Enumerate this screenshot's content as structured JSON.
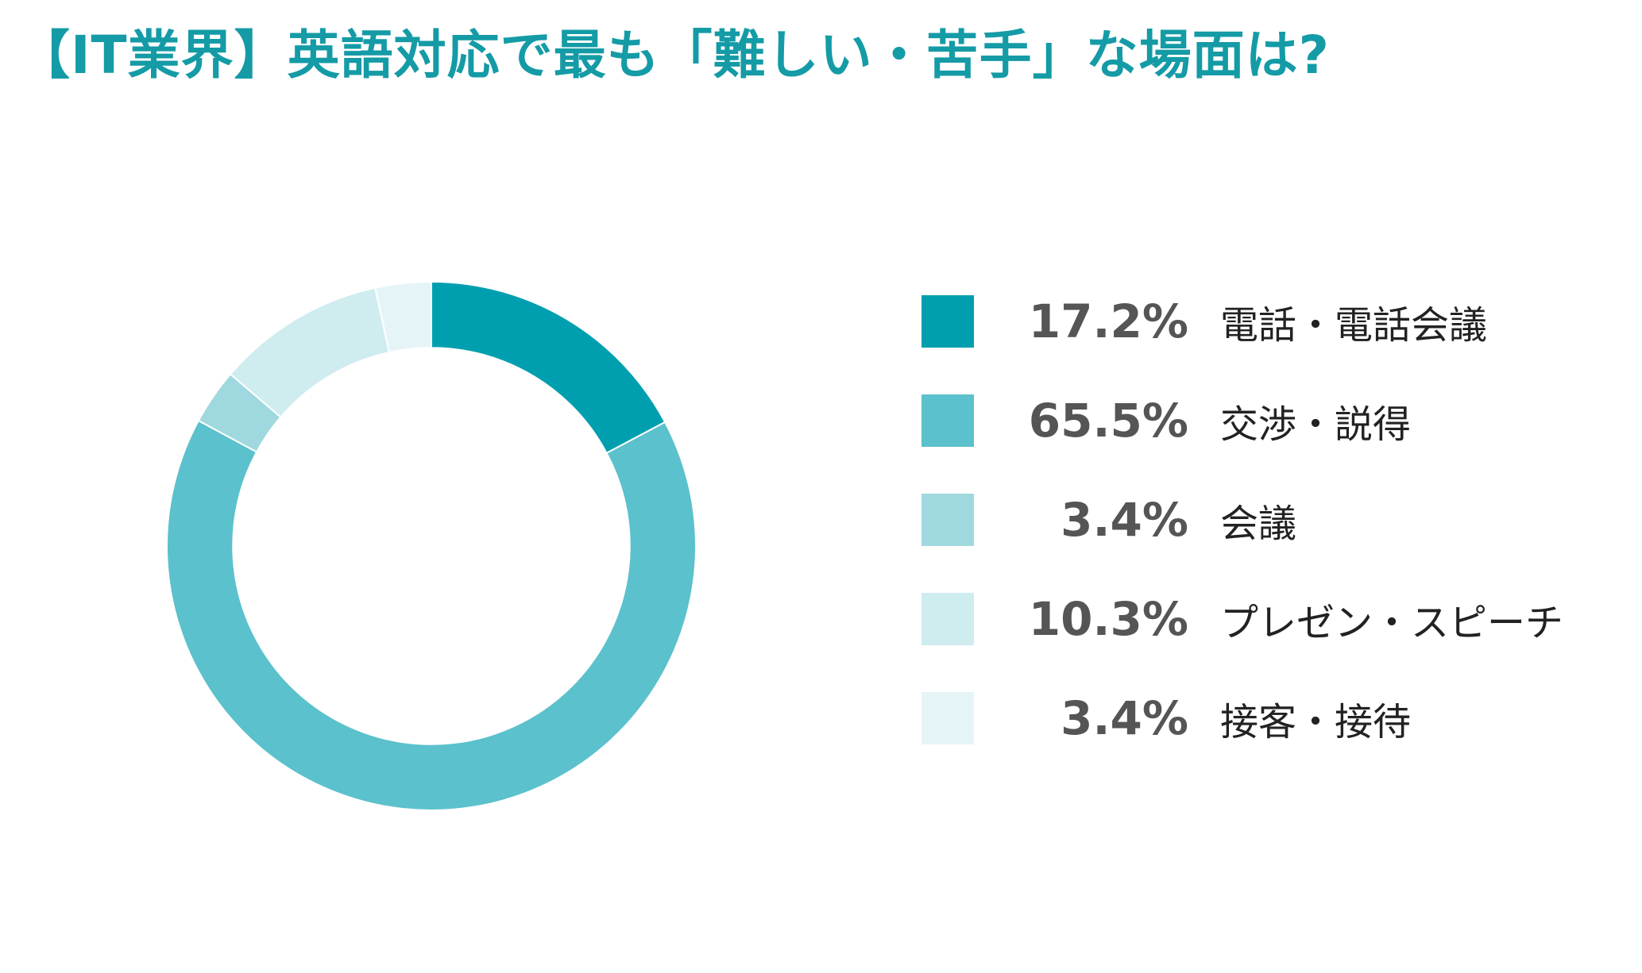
{
  "chart_data": {
    "type": "pie",
    "title": "【IT業界】英語対応で最も「難しい・苦手」な場面は?",
    "title_color": "#149ba6",
    "inner_radius_ratio": 0.75,
    "start_angle_deg": 0,
    "direction": "clockwise",
    "legend_position": "right",
    "slices": [
      {
        "label": "電話・電話会議",
        "value": 17.2,
        "value_label": "17.2%",
        "color": "#009faf"
      },
      {
        "label": "交渉・説得",
        "value": 65.5,
        "value_label": "65.5%",
        "color": "#5bc1cc"
      },
      {
        "label": "会議",
        "value": 3.4,
        "value_label": "3.4%",
        "color": "#9fd9df"
      },
      {
        "label": "プレゼン・スピーチ",
        "value": 10.3,
        "value_label": "10.3%",
        "color": "#cfecef"
      },
      {
        "label": "接客・接待",
        "value": 3.4,
        "value_label": "3.4%",
        "color": "#e5f5f7"
      }
    ]
  }
}
